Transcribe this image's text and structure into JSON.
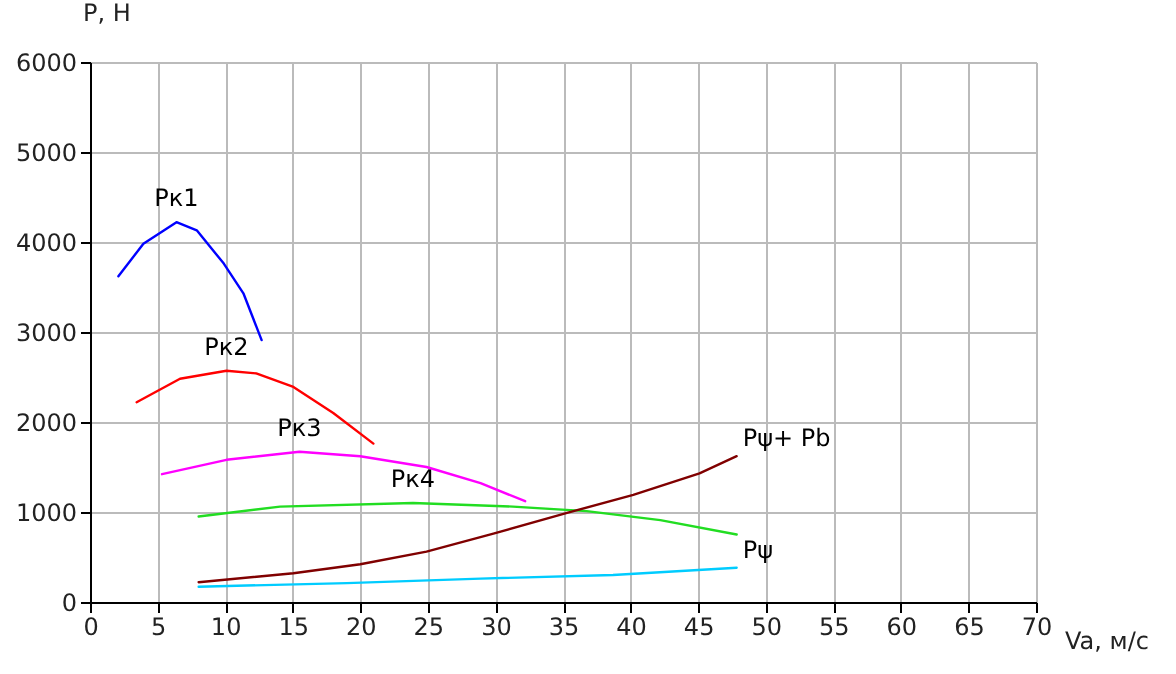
{
  "chart_data": {
    "type": "line",
    "xlabel": "Va, м/с",
    "ylabel": "P, Н",
    "xlim": [
      0,
      70
    ],
    "xticks": [
      0,
      5,
      10,
      15,
      20,
      25,
      30,
      35,
      40,
      45,
      50,
      55,
      60,
      65,
      70
    ],
    "ylim": [
      0,
      6000
    ],
    "yticks": [
      0,
      1000,
      2000,
      3000,
      4000,
      5000,
      6000
    ],
    "grid": true,
    "legend": false,
    "marker": "none",
    "line_style": "solid",
    "series": [
      {
        "name": "Рк1",
        "color": "#0000ff",
        "x": [
          2.1,
          3.95,
          6.4,
          7.9,
          9.9,
          11.35,
          12.7
        ],
        "values": [
          3620,
          3980,
          4220,
          4130,
          3760,
          3430,
          2910
        ]
      },
      {
        "name": "Рк2",
        "color": "#ff0000",
        "x": [
          3.45,
          6.66,
          10.1,
          12.3,
          15.05,
          18.0,
          20.97
        ],
        "values": [
          2220,
          2480,
          2570,
          2540,
          2390,
          2100,
          1760
        ]
      },
      {
        "name": "Рк3",
        "color": "#ff00ff",
        "x": [
          5.33,
          10.1,
          15.5,
          20.0,
          24.9,
          28.9,
          32.2
        ],
        "values": [
          1420,
          1580,
          1670,
          1620,
          1500,
          1320,
          1120
        ]
      },
      {
        "name": "Рк4",
        "color": "#22dd22",
        "x": [
          8.04,
          14.06,
          23.9,
          31.3,
          36.75,
          42.2,
          47.85
        ],
        "values": [
          950,
          1060,
          1100,
          1060,
          1010,
          910,
          750
        ]
      },
      {
        "name": "Рψ+ Pb",
        "color": "#800000",
        "x": [
          8.04,
          15.05,
          20.0,
          24.9,
          29.85,
          35.3,
          40.2,
          45.1,
          47.85
        ],
        "values": [
          220,
          320,
          420,
          560,
          760,
          990,
          1190,
          1430,
          1620
        ]
      },
      {
        "name": "Рψ",
        "color": "#00ccff",
        "x": [
          8.04,
          19.0,
          28.9,
          38.7,
          47.85
        ],
        "values": [
          170,
          210,
          260,
          300,
          380
        ]
      }
    ]
  }
}
